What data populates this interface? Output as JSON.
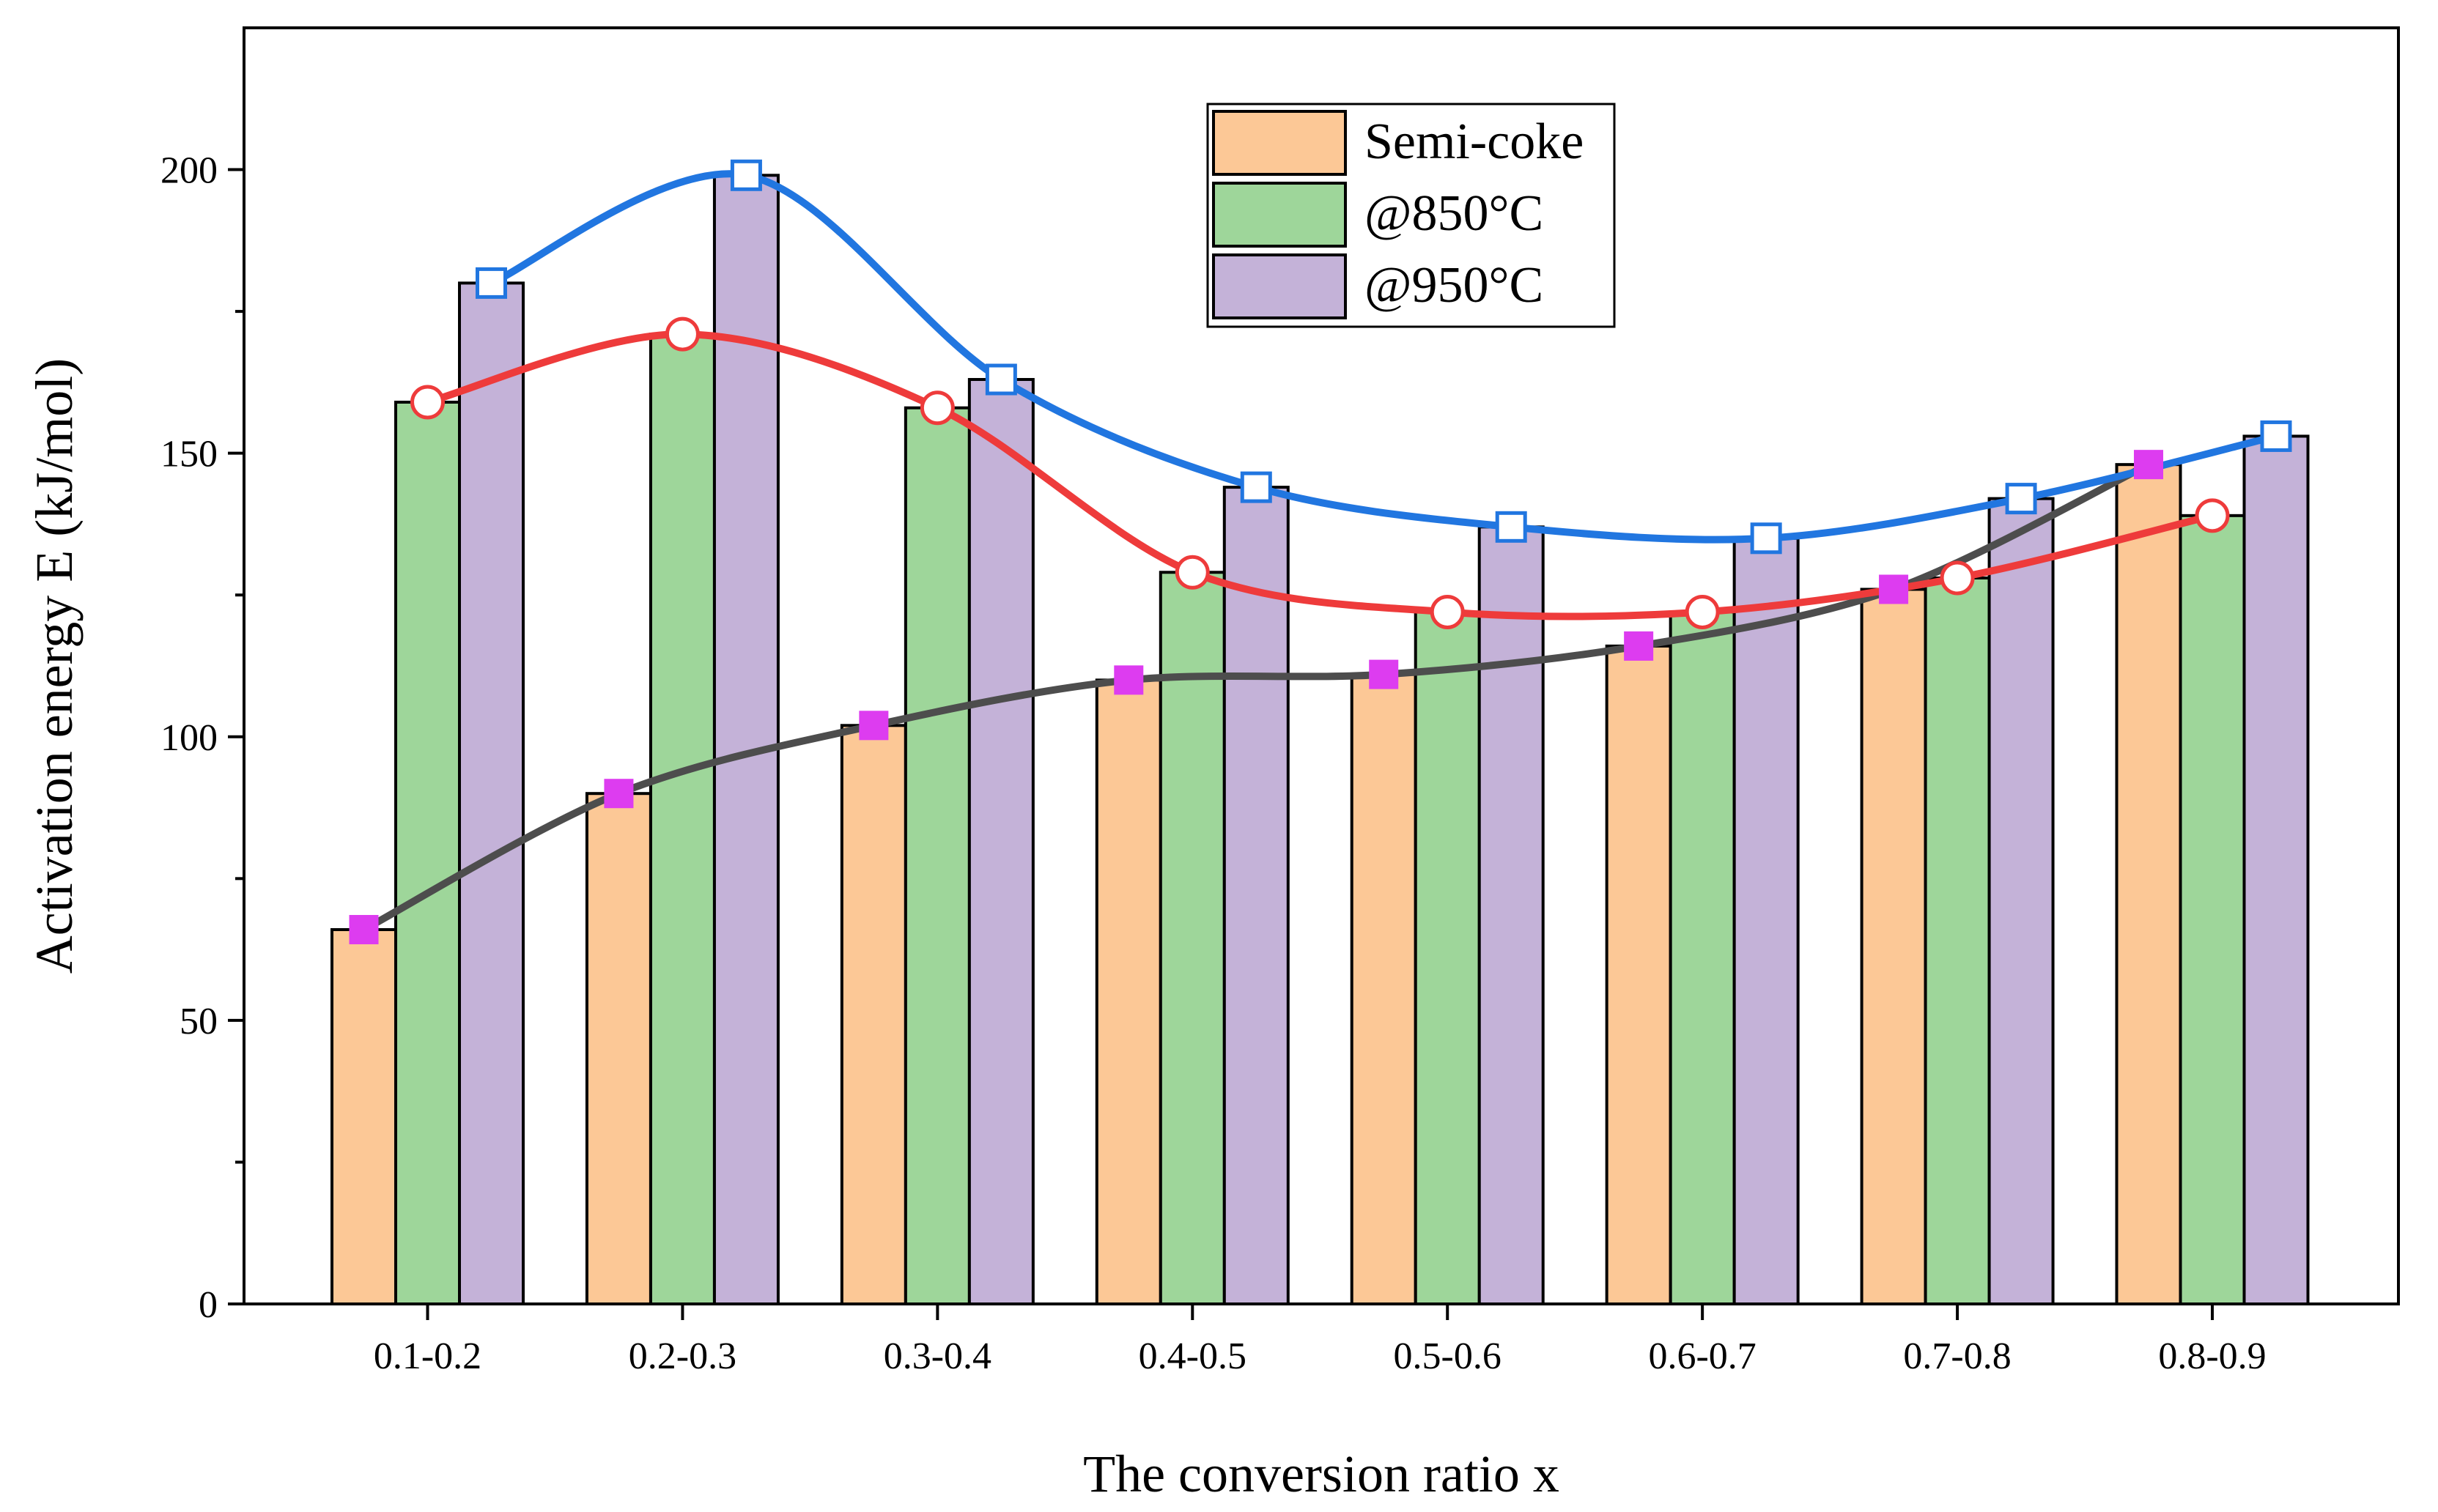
{
  "chart_data": {
    "type": "bar",
    "title": "",
    "xlabel": "The conversion ratio x",
    "ylabel": "Activation energy E (kJ/mol)",
    "ylim": [
      0,
      225
    ],
    "yticks": [
      0,
      50,
      100,
      150,
      200
    ],
    "categories": [
      "0.1-0.2",
      "0.2-0.3",
      "0.3-0.4",
      "0.4-0.5",
      "0.5-0.6",
      "0.6-0.7",
      "0.7-0.8",
      "0.8-0.9"
    ],
    "series": [
      {
        "name": "Semi-coke",
        "color": "#FCC896",
        "values": [
          66,
          90,
          102,
          110,
          111,
          116,
          126,
          148
        ],
        "line_color": "#4D4D4D",
        "marker": "square-filled",
        "marker_color": "#DD3CF0"
      },
      {
        "name": "@850°C",
        "color": "#9ED69A",
        "values": [
          159,
          171,
          158,
          129,
          122,
          122,
          128,
          139
        ],
        "line_color": "#EE3B3B",
        "marker": "circle-open",
        "marker_color": "#EE3B3B"
      },
      {
        "name": "@950°C",
        "color": "#C4B2D8",
        "values": [
          180,
          199,
          163,
          144,
          137,
          135,
          142,
          153
        ],
        "line_color": "#2176E0",
        "marker": "square-open",
        "marker_color": "#2176E0"
      }
    ],
    "legend": {
      "position": "top-center",
      "entries": [
        "Semi-coke",
        "@850°C",
        "@950°C"
      ]
    }
  }
}
